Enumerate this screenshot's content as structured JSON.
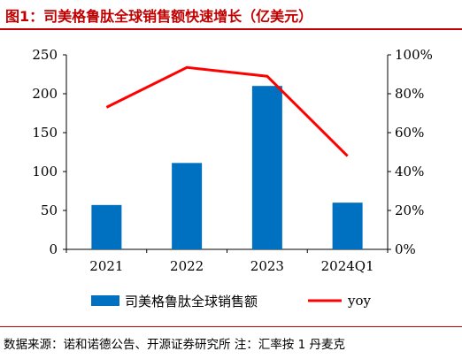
{
  "header": {
    "title": "图1：司美格鲁肽全球销售额快速增长（亿美元）"
  },
  "footer": {
    "source": "数据来源：诺和诺德公告、开源证券研究所 注：汇率按 1 丹麦克"
  },
  "chart_data": {
    "type": "bar",
    "title": "图1：司美格鲁肽全球销售额快速增长（亿美元）",
    "categories": [
      "2021",
      "2022",
      "2023",
      "2024Q1"
    ],
    "series": [
      {
        "name": "司美格鲁肽全球销售额",
        "type": "bar",
        "axis": "left",
        "values": [
          57,
          111,
          210,
          60
        ],
        "color": "#0070c0"
      },
      {
        "name": "yoy",
        "type": "line",
        "axis": "right",
        "values": [
          0.73,
          0.935,
          0.89,
          0.48
        ],
        "color": "#ff0000"
      }
    ],
    "y_left": {
      "min": 0,
      "max": 250,
      "ticks": [
        0,
        50,
        100,
        150,
        200,
        250
      ]
    },
    "y_right": {
      "min": 0,
      "max": 1,
      "ticks": [
        "0%",
        "20%",
        "40%",
        "60%",
        "80%",
        "100%"
      ]
    },
    "grid": false,
    "legend_position": "bottom"
  }
}
